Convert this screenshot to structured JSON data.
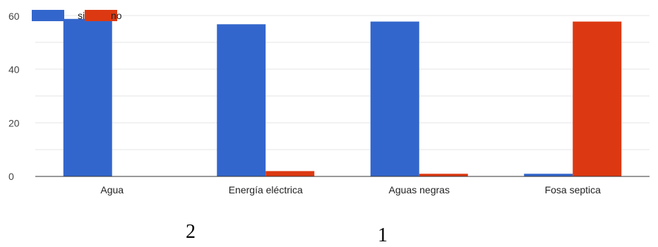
{
  "chart_data": {
    "type": "bar",
    "categories": [
      "Agua",
      "Energía eléctrica",
      "Aguas negras",
      "Fosa septica"
    ],
    "series": [
      {
        "name": "si",
        "color": "#3366cc",
        "values": [
          59,
          57,
          58,
          1
        ]
      },
      {
        "name": "no",
        "color": "#dc3912",
        "values": [
          0,
          2,
          1,
          58
        ]
      }
    ],
    "ylim": [
      0,
      60
    ],
    "yticks": [
      0,
      20,
      40,
      60
    ],
    "grid": true,
    "legend": "top-left"
  },
  "page_numbers": {
    "left": "2",
    "right": "1"
  }
}
